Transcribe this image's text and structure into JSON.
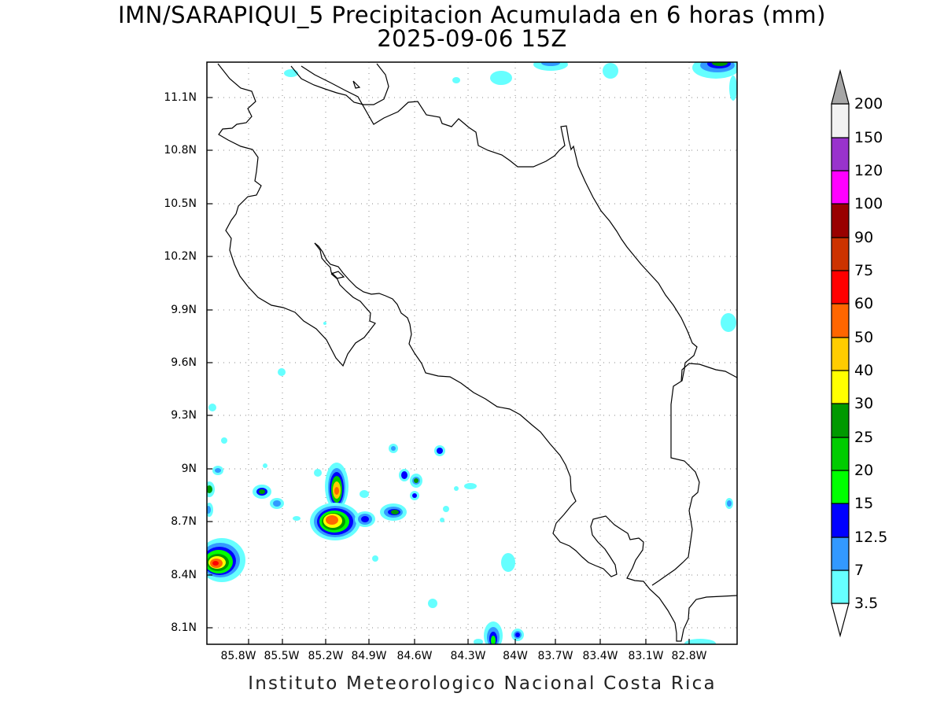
{
  "title": "IMN/SARAPIQUI_5 Precipitacion Acumulada en 6 horas (mm)",
  "subtitle": "2025-09-06 15Z",
  "credit": "Instituto Meteorologico Nacional Costa Rica",
  "axes": {
    "lat_ticks": [
      "11.1N",
      "10.8N",
      "10.5N",
      "10.2N",
      "9.9N",
      "9.6N",
      "9.3N",
      "9N",
      "8.7N",
      "8.4N",
      "8.1N"
    ],
    "lon_ticks": [
      "85.8W",
      "85.5W",
      "85.2W",
      "84.9W",
      "84.6W",
      "84.3W",
      "84W",
      "83.7W",
      "83.4W",
      "83.1W",
      "82.8W"
    ]
  },
  "legend": {
    "levels": [
      {
        "label": "3.5",
        "color": "#66ffff"
      },
      {
        "label": "7",
        "color": "#3399ff"
      },
      {
        "label": "12.5",
        "color": "#0000ff"
      },
      {
        "label": "15",
        "color": "#00ff00"
      },
      {
        "label": "20",
        "color": "#00cc00"
      },
      {
        "label": "25",
        "color": "#009900"
      },
      {
        "label": "30",
        "color": "#ffff00"
      },
      {
        "label": "40",
        "color": "#ffcc00"
      },
      {
        "label": "50",
        "color": "#ff6600"
      },
      {
        "label": "60",
        "color": "#ff0000"
      },
      {
        "label": "75",
        "color": "#cc3300"
      },
      {
        "label": "90",
        "color": "#990000"
      },
      {
        "label": "100",
        "color": "#ff00ff"
      },
      {
        "label": "120",
        "color": "#9933cc"
      },
      {
        "label": "150",
        "color": "#f2f2f2"
      },
      {
        "label": "200",
        "color": "#a6a6a6"
      }
    ]
  }
}
